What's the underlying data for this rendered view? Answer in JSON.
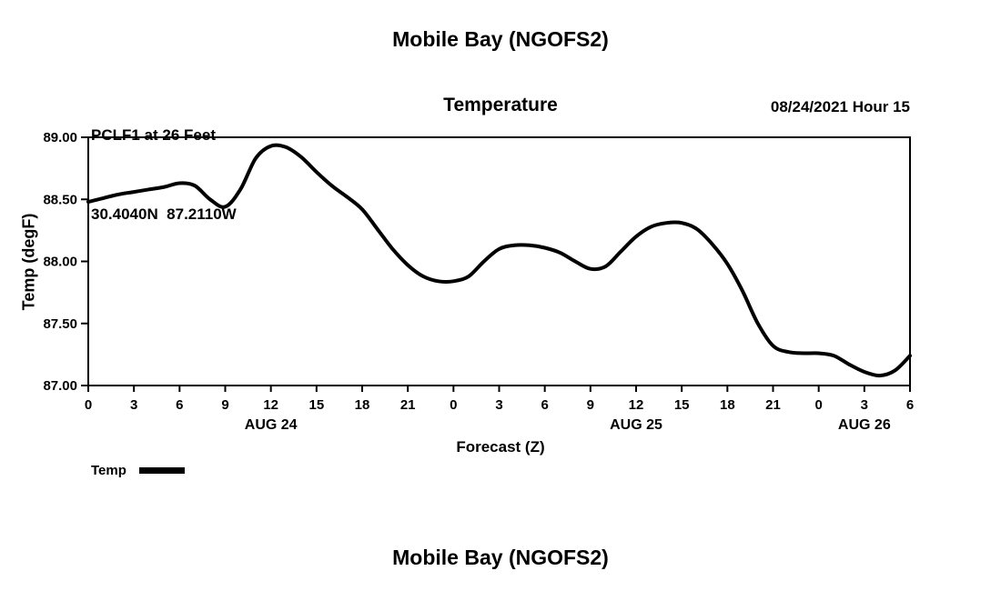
{
  "page": {
    "top_title": "Mobile Bay (NGOFS2)",
    "bottom_title": "Mobile Bay (NGOFS2)"
  },
  "header": {
    "station_line1": "PCLF1 at 26 Feet",
    "station_line2": "30.4040N  87.2110W",
    "chart_title": "Temperature",
    "run_info": "08/24/2021 Hour 15"
  },
  "chart_data": {
    "type": "line",
    "title": "Temperature",
    "xlabel": "Forecast (Z)",
    "ylabel": "Temp (degF)",
    "ylim": [
      87.0,
      89.0
    ],
    "xlim_hours": [
      0,
      54
    ],
    "grid": false,
    "legend_position": "bottom-left",
    "line_color": "#000000",
    "yticks": [
      89.0,
      88.5,
      88.0,
      87.5,
      87.0
    ],
    "ytick_labels": [
      "89.00",
      "88.50",
      "88.00",
      "87.50",
      "87.00"
    ],
    "xticks": [
      0,
      3,
      6,
      9,
      12,
      15,
      18,
      21,
      24,
      27,
      30,
      33,
      36,
      39,
      42,
      45,
      48,
      51,
      54
    ],
    "xtick_labels": [
      "0",
      "3",
      "6",
      "9",
      "12",
      "15",
      "18",
      "21",
      "0",
      "3",
      "6",
      "9",
      "12",
      "15",
      "18",
      "21",
      "0",
      "3",
      "6"
    ],
    "date_labels": [
      {
        "label": "AUG 24",
        "hour": 12
      },
      {
        "label": "AUG 25",
        "hour": 36
      },
      {
        "label": "AUG 26",
        "hour": 51
      }
    ],
    "legend": [
      {
        "label": "Temp",
        "color": "#000000"
      }
    ],
    "series": [
      {
        "name": "Temp",
        "color": "#000000",
        "x": [
          0,
          1,
          2,
          3,
          4,
          5,
          6,
          7,
          8,
          9,
          10,
          11,
          12,
          13,
          14,
          15,
          16,
          17,
          18,
          19,
          20,
          21,
          22,
          23,
          24,
          25,
          26,
          27,
          28,
          29,
          30,
          31,
          32,
          33,
          34,
          35,
          36,
          37,
          38,
          39,
          40,
          41,
          42,
          43,
          44,
          45,
          46,
          47,
          48,
          49,
          50,
          51,
          52,
          53,
          54
        ],
        "values": [
          88.48,
          88.51,
          88.54,
          88.56,
          88.58,
          88.6,
          88.63,
          88.61,
          88.5,
          88.44,
          88.58,
          88.83,
          88.93,
          88.92,
          88.84,
          88.72,
          88.61,
          88.52,
          88.42,
          88.26,
          88.1,
          87.97,
          87.88,
          87.84,
          87.84,
          87.88,
          88.0,
          88.1,
          88.13,
          88.13,
          88.11,
          88.07,
          88.0,
          87.94,
          87.96,
          88.08,
          88.2,
          88.28,
          88.31,
          88.31,
          88.26,
          88.14,
          87.98,
          87.76,
          87.5,
          87.32,
          87.27,
          87.26,
          87.26,
          87.24,
          87.17,
          87.11,
          87.08,
          87.12,
          87.24
        ]
      }
    ]
  }
}
